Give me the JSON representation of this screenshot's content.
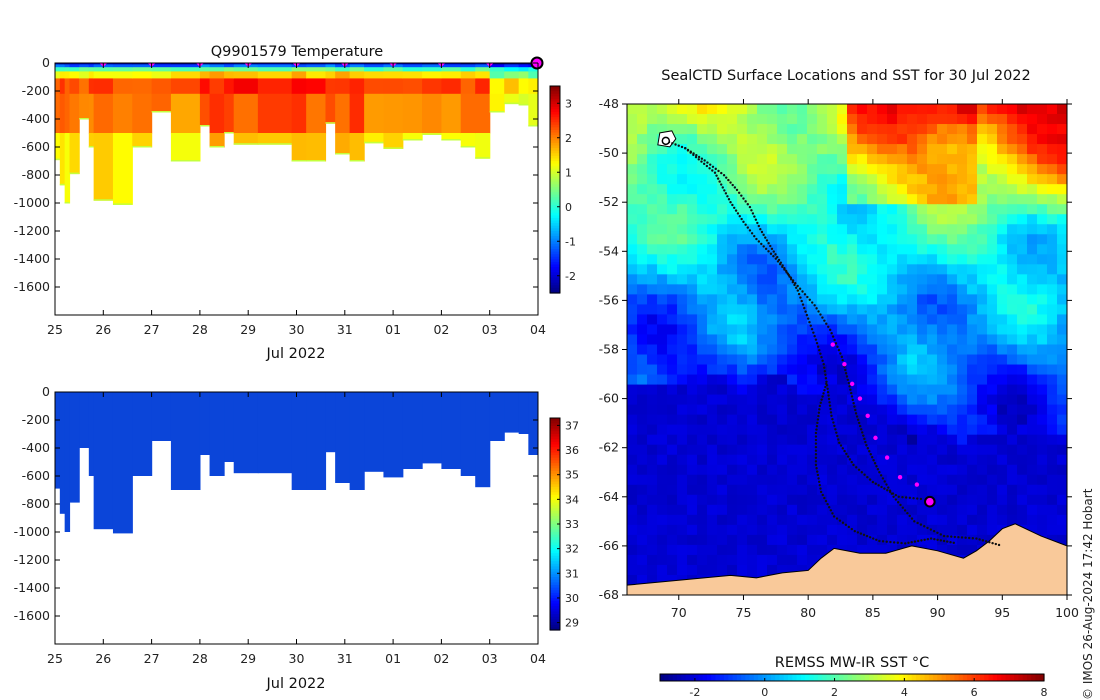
{
  "credit": "© IMOS 26-Aug-2024 17:42 Hobart",
  "colors": {
    "jet": [
      "#00007f",
      "#0000ff",
      "#0080ff",
      "#00ffff",
      "#80ff80",
      "#ffff00",
      "#ff8000",
      "#ff0000",
      "#7f0000"
    ],
    "section_fill": "#0b45d9",
    "land": "#f9c99a",
    "track": "#111111",
    "profile_marker": "#ff00ff"
  },
  "chart_data": [
    {
      "id": "temperature",
      "type": "heatmap",
      "title": "Q9901579  Temperature",
      "xlabel": "Jul 2022",
      "xticks": [
        "25",
        "26",
        "27",
        "28",
        "29",
        "30",
        "31",
        "01",
        "02",
        "03",
        "04"
      ],
      "xlim": [
        25,
        35
      ],
      "ylim": [
        -1800,
        0
      ],
      "yticks": [
        0,
        -200,
        -400,
        -600,
        -800,
        -1000,
        -1200,
        -1400,
        -1600
      ],
      "colorbar": {
        "min": -2.5,
        "max": 3.5,
        "ticks": [
          3,
          2,
          1,
          0,
          -1,
          -2
        ]
      },
      "profile_markers_day": [
        26,
        27,
        28,
        29,
        30,
        31,
        32,
        33,
        34
      ],
      "latest_marker_day": 35,
      "profiles": [
        {
          "x0": 25.0,
          "x1": 25.1,
          "depth": 690
        },
        {
          "x0": 25.1,
          "x1": 25.2,
          "depth": 870
        },
        {
          "x0": 25.2,
          "x1": 25.3,
          "depth": 1000
        },
        {
          "x0": 25.3,
          "x1": 25.5,
          "depth": 790
        },
        {
          "x0": 25.5,
          "x1": 25.7,
          "depth": 400
        },
        {
          "x0": 25.7,
          "x1": 25.8,
          "depth": 600
        },
        {
          "x0": 25.8,
          "x1": 26.2,
          "depth": 980
        },
        {
          "x0": 26.2,
          "x1": 26.6,
          "depth": 1010
        },
        {
          "x0": 26.6,
          "x1": 27.0,
          "depth": 600
        },
        {
          "x0": 27.0,
          "x1": 27.4,
          "depth": 350
        },
        {
          "x0": 27.4,
          "x1": 28.0,
          "depth": 700
        },
        {
          "x0": 28.0,
          "x1": 28.2,
          "depth": 450
        },
        {
          "x0": 28.2,
          "x1": 28.5,
          "depth": 600
        },
        {
          "x0": 28.5,
          "x1": 28.7,
          "depth": 500
        },
        {
          "x0": 28.7,
          "x1": 29.2,
          "depth": 580
        },
        {
          "x0": 29.2,
          "x1": 29.9,
          "depth": 580
        },
        {
          "x0": 29.9,
          "x1": 30.2,
          "depth": 700
        },
        {
          "x0": 30.2,
          "x1": 30.6,
          "depth": 700
        },
        {
          "x0": 30.6,
          "x1": 30.8,
          "depth": 430
        },
        {
          "x0": 30.8,
          "x1": 31.1,
          "depth": 650
        },
        {
          "x0": 31.1,
          "x1": 31.4,
          "depth": 700
        },
        {
          "x0": 31.4,
          "x1": 31.8,
          "depth": 570
        },
        {
          "x0": 31.8,
          "x1": 32.2,
          "depth": 610
        },
        {
          "x0": 32.2,
          "x1": 32.6,
          "depth": 550
        },
        {
          "x0": 32.6,
          "x1": 33.0,
          "depth": 510
        },
        {
          "x0": 33.0,
          "x1": 33.4,
          "depth": 550
        },
        {
          "x0": 33.4,
          "x1": 33.7,
          "depth": 600
        },
        {
          "x0": 33.7,
          "x1": 34.0,
          "depth": 680
        },
        {
          "x0": 34.0,
          "x1": 34.3,
          "depth": 350
        },
        {
          "x0": 34.3,
          "x1": 34.6,
          "depth": 290
        },
        {
          "x0": 34.6,
          "x1": 34.8,
          "depth": 300
        },
        {
          "x0": 34.8,
          "x1": 35.0,
          "depth": 450
        }
      ]
    },
    {
      "id": "salinity",
      "type": "heatmap",
      "xlabel": "Jul 2022",
      "xticks": [
        "25",
        "26",
        "27",
        "28",
        "29",
        "30",
        "31",
        "01",
        "02",
        "03",
        "04"
      ],
      "xlim": [
        25,
        35
      ],
      "ylim": [
        -1800,
        0
      ],
      "yticks": [
        0,
        -200,
        -400,
        -600,
        -800,
        -1000,
        -1200,
        -1400,
        -1600
      ],
      "colorbar": {
        "min": 28.7,
        "max": 37.3,
        "ticks": [
          37,
          36,
          35,
          34,
          33,
          32,
          31,
          30,
          29
        ]
      },
      "fill_value": 29.9
    },
    {
      "id": "sst_map",
      "type": "heatmap",
      "title": "SealCTD Surface Locations and SST for 30 Jul 2022",
      "xlim": [
        66,
        100
      ],
      "ylim": [
        -68,
        -48
      ],
      "xticks": [
        70,
        75,
        80,
        85,
        90,
        95,
        100
      ],
      "yticks": [
        -48,
        -50,
        -52,
        -54,
        -56,
        -58,
        -60,
        -62,
        -64,
        -66,
        -68
      ],
      "colorbar": {
        "label": "REMSS MW-IR SST °C",
        "min": -3,
        "max": 8,
        "ticks": [
          -2,
          0,
          2,
          4,
          6,
          8
        ]
      },
      "ice_edge": [
        [
          66,
          -59.5
        ],
        [
          69,
          -59.3
        ],
        [
          72,
          -59.9
        ],
        [
          75,
          -60.0
        ],
        [
          76,
          -59.0
        ],
        [
          78,
          -59.2
        ],
        [
          80,
          -59.8
        ],
        [
          82,
          -60.0
        ],
        [
          84,
          -60.1
        ],
        [
          86,
          -60.8
        ],
        [
          88,
          -61.7
        ],
        [
          90,
          -61.6
        ],
        [
          92,
          -61.7
        ],
        [
          94,
          -61.5
        ],
        [
          96,
          -61.2
        ],
        [
          98,
          -61.6
        ],
        [
          100,
          -61.3
        ]
      ],
      "antarctica_coast": [
        [
          66,
          -67.6
        ],
        [
          70,
          -67.4
        ],
        [
          74,
          -67.2
        ],
        [
          76,
          -67.3
        ],
        [
          78,
          -67.1
        ],
        [
          80,
          -67.0
        ],
        [
          81,
          -66.5
        ],
        [
          82,
          -66.1
        ],
        [
          84,
          -66.3
        ],
        [
          86,
          -66.3
        ],
        [
          88,
          -66.0
        ],
        [
          90,
          -66.2
        ],
        [
          92,
          -66.5
        ],
        [
          93,
          -66.2
        ],
        [
          94,
          -65.8
        ],
        [
          95,
          -65.3
        ],
        [
          96,
          -65.1
        ],
        [
          98,
          -65.6
        ],
        [
          100,
          -66.0
        ]
      ],
      "track": [
        [
          69.0,
          -49.5
        ],
        [
          70.5,
          -49.8
        ],
        [
          72,
          -50.3
        ],
        [
          73.5,
          -50.9
        ],
        [
          74.5,
          -51.5
        ],
        [
          75.5,
          -52.2
        ],
        [
          76.3,
          -53.1
        ],
        [
          77.2,
          -53.9
        ],
        [
          78.3,
          -54.8
        ],
        [
          79.2,
          -55.6
        ],
        [
          79.9,
          -56.6
        ],
        [
          80.6,
          -57.6
        ],
        [
          81.2,
          -58.6
        ],
        [
          81.5,
          -59.6
        ],
        [
          81.8,
          -60.7
        ],
        [
          82.4,
          -61.8
        ],
        [
          83.5,
          -62.7
        ],
        [
          85.0,
          -63.4
        ],
        [
          87.0,
          -64.0
        ],
        [
          89.0,
          -64.1
        ]
      ],
      "track_alt": [
        [
          70.5,
          -49.8
        ],
        [
          72.8,
          -50.8
        ],
        [
          74.0,
          -52.0
        ],
        [
          75.0,
          -52.8
        ],
        [
          76.0,
          -53.5
        ],
        [
          77.5,
          -54.3
        ],
        [
          79.0,
          -55.3
        ],
        [
          80.5,
          -56.2
        ],
        [
          81.7,
          -57.2
        ],
        [
          82.6,
          -58.3
        ],
        [
          83.2,
          -59.5
        ],
        [
          83.7,
          -60.6
        ],
        [
          84.5,
          -61.9
        ],
        [
          85.5,
          -63.0
        ],
        [
          86.6,
          -64.0
        ],
        [
          88.2,
          -65.0
        ],
        [
          90.5,
          -65.6
        ],
        [
          93.0,
          -65.7
        ],
        [
          95.0,
          -66.0
        ]
      ],
      "track_return": [
        [
          81.4,
          -59.4
        ],
        [
          80.9,
          -60.3
        ],
        [
          80.6,
          -61.4
        ],
        [
          80.6,
          -62.7
        ],
        [
          81.0,
          -63.8
        ],
        [
          82.0,
          -64.8
        ],
        [
          83.6,
          -65.4
        ],
        [
          85.5,
          -65.8
        ],
        [
          87.5,
          -65.9
        ],
        [
          89.5,
          -65.7
        ],
        [
          91.5,
          -65.9
        ]
      ],
      "profiles": [
        [
          81.9,
          -57.8
        ],
        [
          82.8,
          -58.6
        ],
        [
          83.4,
          -59.4
        ],
        [
          84.0,
          -60.0
        ],
        [
          84.6,
          -60.7
        ],
        [
          85.2,
          -61.6
        ],
        [
          86.1,
          -62.4
        ],
        [
          87.1,
          -63.2
        ],
        [
          88.4,
          -63.5
        ]
      ],
      "latest_position": [
        89.4,
        -64.2
      ],
      "start_position": [
        69.0,
        -49.5
      ]
    }
  ]
}
